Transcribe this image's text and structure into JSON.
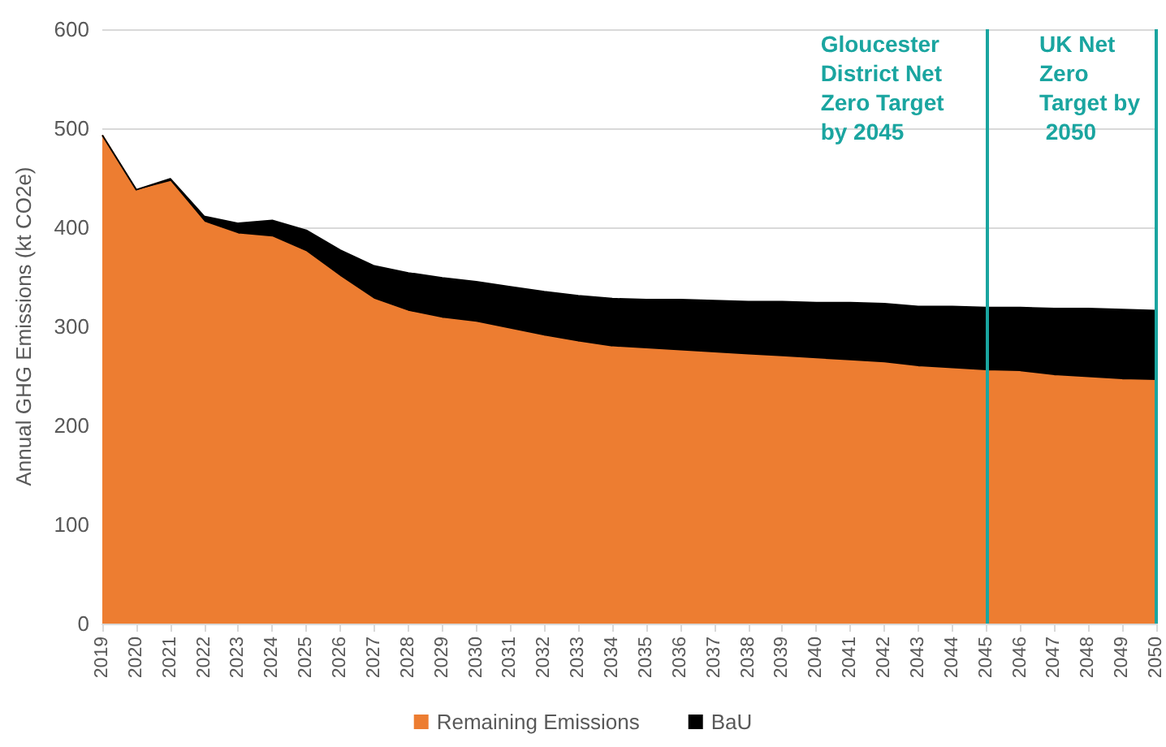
{
  "chart_data": {
    "type": "area",
    "stacked": true,
    "ylabel": "Annual GHG Emissions (kt CO2e)",
    "categories": [
      "2019",
      "2020",
      "2021",
      "2022",
      "2023",
      "2024",
      "2025",
      "2026",
      "2027",
      "2028",
      "2029",
      "2030",
      "2031",
      "2032",
      "2033",
      "2034",
      "2035",
      "2036",
      "2037",
      "2038",
      "2039",
      "2040",
      "2041",
      "2042",
      "2043",
      "2044",
      "2045",
      "2046",
      "2047",
      "2048",
      "2049",
      "2050"
    ],
    "series": [
      {
        "name": "Remaining Emissions",
        "color": "#ed7d31",
        "values": [
          493,
          437,
          446,
          405,
          393,
          390,
          375,
          350,
          327,
          315,
          308,
          304,
          297,
          290,
          284,
          279,
          277,
          275,
          273,
          271,
          269,
          267,
          265,
          263,
          259,
          257,
          255,
          254,
          250,
          248,
          246,
          245
        ]
      },
      {
        "name": "BaU",
        "color": "#000000",
        "values": [
          0,
          1,
          3,
          6,
          11,
          17,
          22,
          27,
          34,
          39,
          41,
          41,
          43,
          45,
          47,
          49,
          50,
          52,
          53,
          54,
          56,
          57,
          59,
          60,
          61,
          63,
          64,
          65,
          68,
          70,
          71,
          71
        ]
      }
    ],
    "ylim": [
      0,
      600
    ],
    "yticks": [
      0,
      100,
      200,
      300,
      400,
      500,
      600
    ],
    "grid": "y",
    "legend": "bottom",
    "marker": "none",
    "ref_lines": [
      {
        "axis": "x",
        "value": "2045",
        "label": "Gloucester District Net Zero Target by 2045",
        "color": "#1aa5a0"
      },
      {
        "axis": "x",
        "value": "2050",
        "label": "UK Net Zero Target by 2050",
        "color": "#1aa5a0"
      }
    ]
  }
}
